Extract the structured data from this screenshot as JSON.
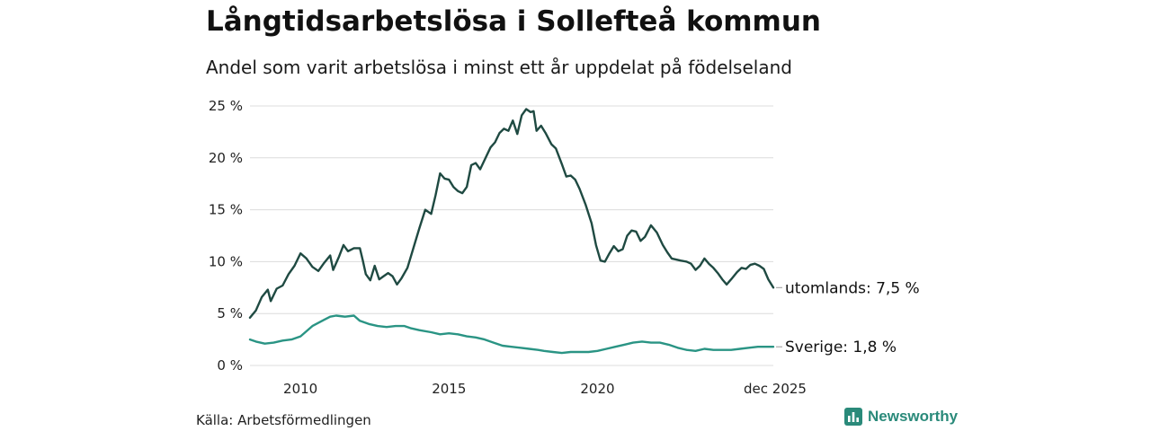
{
  "title": "Långtidsarbetslösa i Sollefteå kommun",
  "subtitle": "Andel som varit arbetslösa i minst ett år uppdelat på födelseland",
  "source": "Källa: Arbetsförmedlingen",
  "brand": "Newsworthy",
  "chart_data": {
    "type": "line",
    "title": "Långtidsarbetslösa i Sollefteå kommun",
    "subtitle": "Andel som varit arbetslösa i minst ett år uppdelat på födelseland",
    "xlabel": "",
    "ylabel": "",
    "xlim": [
      2008.3,
      2025.92
    ],
    "ylim": [
      0,
      25
    ],
    "y_ticks": [
      {
        "value": 0,
        "label": "0 %"
      },
      {
        "value": 5,
        "label": "5 %"
      },
      {
        "value": 10,
        "label": "10 %"
      },
      {
        "value": 15,
        "label": "15 %"
      },
      {
        "value": 20,
        "label": "20 %"
      },
      {
        "value": 25,
        "label": "25 %"
      }
    ],
    "x_ticks": [
      {
        "value": 2010,
        "label": "2010"
      },
      {
        "value": 2015,
        "label": "2015"
      },
      {
        "value": 2020,
        "label": "2020"
      },
      {
        "value": 2025.92,
        "label": "dec 2025"
      }
    ],
    "grid": true,
    "legend": "direct labels at line ends (right)",
    "series": [
      {
        "name": "utomlands",
        "end_label": "utomlands: 7,5 %",
        "color": "#1f4a42",
        "points": [
          [
            2008.3,
            4.6
          ],
          [
            2008.5,
            5.3
          ],
          [
            2008.7,
            6.6
          ],
          [
            2008.9,
            7.3
          ],
          [
            2009.0,
            6.2
          ],
          [
            2009.2,
            7.4
          ],
          [
            2009.4,
            7.7
          ],
          [
            2009.6,
            8.8
          ],
          [
            2009.8,
            9.6
          ],
          [
            2010.0,
            10.8
          ],
          [
            2010.2,
            10.3
          ],
          [
            2010.4,
            9.5
          ],
          [
            2010.6,
            9.1
          ],
          [
            2010.8,
            9.9
          ],
          [
            2011.0,
            10.6
          ],
          [
            2011.1,
            9.2
          ],
          [
            2011.3,
            10.5
          ],
          [
            2011.45,
            11.6
          ],
          [
            2011.6,
            11.0
          ],
          [
            2011.8,
            11.3
          ],
          [
            2012.0,
            11.3
          ],
          [
            2012.1,
            10.1
          ],
          [
            2012.2,
            8.8
          ],
          [
            2012.35,
            8.2
          ],
          [
            2012.5,
            9.6
          ],
          [
            2012.65,
            8.3
          ],
          [
            2012.8,
            8.6
          ],
          [
            2012.95,
            8.9
          ],
          [
            2013.1,
            8.6
          ],
          [
            2013.25,
            7.8
          ],
          [
            2013.4,
            8.4
          ],
          [
            2013.6,
            9.4
          ],
          [
            2013.8,
            11.3
          ],
          [
            2014.0,
            13.2
          ],
          [
            2014.2,
            15.0
          ],
          [
            2014.4,
            14.6
          ],
          [
            2014.55,
            16.4
          ],
          [
            2014.7,
            18.5
          ],
          [
            2014.85,
            18.0
          ],
          [
            2015.0,
            17.9
          ],
          [
            2015.15,
            17.2
          ],
          [
            2015.3,
            16.8
          ],
          [
            2015.45,
            16.6
          ],
          [
            2015.6,
            17.2
          ],
          [
            2015.75,
            19.3
          ],
          [
            2015.9,
            19.5
          ],
          [
            2016.05,
            18.9
          ],
          [
            2016.2,
            19.8
          ],
          [
            2016.4,
            21.0
          ],
          [
            2016.55,
            21.5
          ],
          [
            2016.7,
            22.4
          ],
          [
            2016.85,
            22.8
          ],
          [
            2017.0,
            22.6
          ],
          [
            2017.15,
            23.6
          ],
          [
            2017.3,
            22.3
          ],
          [
            2017.45,
            24.1
          ],
          [
            2017.6,
            24.7
          ],
          [
            2017.75,
            24.4
          ],
          [
            2017.85,
            24.5
          ],
          [
            2017.95,
            22.6
          ],
          [
            2018.1,
            23.1
          ],
          [
            2018.25,
            22.4
          ],
          [
            2018.45,
            21.3
          ],
          [
            2018.6,
            20.9
          ],
          [
            2018.8,
            19.4
          ],
          [
            2018.95,
            18.2
          ],
          [
            2019.1,
            18.3
          ],
          [
            2019.25,
            17.9
          ],
          [
            2019.4,
            17.0
          ],
          [
            2019.6,
            15.5
          ],
          [
            2019.8,
            13.7
          ],
          [
            2019.95,
            11.6
          ],
          [
            2020.1,
            10.1
          ],
          [
            2020.25,
            10.0
          ],
          [
            2020.4,
            10.8
          ],
          [
            2020.55,
            11.5
          ],
          [
            2020.7,
            11.0
          ],
          [
            2020.85,
            11.2
          ],
          [
            2021.0,
            12.5
          ],
          [
            2021.15,
            13.0
          ],
          [
            2021.3,
            12.9
          ],
          [
            2021.45,
            12.0
          ],
          [
            2021.6,
            12.4
          ],
          [
            2021.8,
            13.5
          ],
          [
            2022.0,
            12.8
          ],
          [
            2022.2,
            11.6
          ],
          [
            2022.35,
            10.9
          ],
          [
            2022.5,
            10.3
          ],
          [
            2022.65,
            10.2
          ],
          [
            2022.8,
            10.1
          ],
          [
            2023.0,
            10.0
          ],
          [
            2023.15,
            9.8
          ],
          [
            2023.3,
            9.2
          ],
          [
            2023.45,
            9.6
          ],
          [
            2023.6,
            10.3
          ],
          [
            2023.75,
            9.8
          ],
          [
            2023.9,
            9.4
          ],
          [
            2024.05,
            8.9
          ],
          [
            2024.2,
            8.3
          ],
          [
            2024.35,
            7.8
          ],
          [
            2024.5,
            8.3
          ],
          [
            2024.7,
            9.0
          ],
          [
            2024.85,
            9.4
          ],
          [
            2025.0,
            9.3
          ],
          [
            2025.15,
            9.7
          ],
          [
            2025.3,
            9.8
          ],
          [
            2025.45,
            9.6
          ],
          [
            2025.6,
            9.3
          ],
          [
            2025.75,
            8.3
          ],
          [
            2025.92,
            7.5
          ]
        ]
      },
      {
        "name": "Sverige",
        "end_label": "Sverige: 1,8 %",
        "color": "#2a9484",
        "points": [
          [
            2008.3,
            2.5
          ],
          [
            2008.5,
            2.3
          ],
          [
            2008.8,
            2.1
          ],
          [
            2009.1,
            2.2
          ],
          [
            2009.4,
            2.4
          ],
          [
            2009.7,
            2.5
          ],
          [
            2010.0,
            2.8
          ],
          [
            2010.2,
            3.3
          ],
          [
            2010.4,
            3.8
          ],
          [
            2010.6,
            4.1
          ],
          [
            2010.8,
            4.4
          ],
          [
            2011.0,
            4.7
          ],
          [
            2011.2,
            4.8
          ],
          [
            2011.5,
            4.7
          ],
          [
            2011.8,
            4.8
          ],
          [
            2012.0,
            4.3
          ],
          [
            2012.3,
            4.0
          ],
          [
            2012.6,
            3.8
          ],
          [
            2012.9,
            3.7
          ],
          [
            2013.2,
            3.8
          ],
          [
            2013.5,
            3.8
          ],
          [
            2013.7,
            3.6
          ],
          [
            2014.0,
            3.4
          ],
          [
            2014.4,
            3.2
          ],
          [
            2014.7,
            3.0
          ],
          [
            2015.0,
            3.1
          ],
          [
            2015.3,
            3.0
          ],
          [
            2015.6,
            2.8
          ],
          [
            2015.9,
            2.7
          ],
          [
            2016.2,
            2.5
          ],
          [
            2016.5,
            2.2
          ],
          [
            2016.8,
            1.9
          ],
          [
            2017.1,
            1.8
          ],
          [
            2017.4,
            1.7
          ],
          [
            2017.7,
            1.6
          ],
          [
            2018.0,
            1.5
          ],
          [
            2018.2,
            1.4
          ],
          [
            2018.5,
            1.3
          ],
          [
            2018.8,
            1.2
          ],
          [
            2019.1,
            1.3
          ],
          [
            2019.4,
            1.3
          ],
          [
            2019.7,
            1.3
          ],
          [
            2020.0,
            1.4
          ],
          [
            2020.3,
            1.6
          ],
          [
            2020.6,
            1.8
          ],
          [
            2020.9,
            2.0
          ],
          [
            2021.2,
            2.2
          ],
          [
            2021.5,
            2.3
          ],
          [
            2021.8,
            2.2
          ],
          [
            2022.1,
            2.2
          ],
          [
            2022.4,
            2.0
          ],
          [
            2022.7,
            1.7
          ],
          [
            2023.0,
            1.5
          ],
          [
            2023.3,
            1.4
          ],
          [
            2023.6,
            1.6
          ],
          [
            2023.9,
            1.5
          ],
          [
            2024.2,
            1.5
          ],
          [
            2024.5,
            1.5
          ],
          [
            2024.8,
            1.6
          ],
          [
            2025.1,
            1.7
          ],
          [
            2025.4,
            1.8
          ],
          [
            2025.7,
            1.8
          ],
          [
            2025.92,
            1.8
          ]
        ]
      }
    ]
  }
}
